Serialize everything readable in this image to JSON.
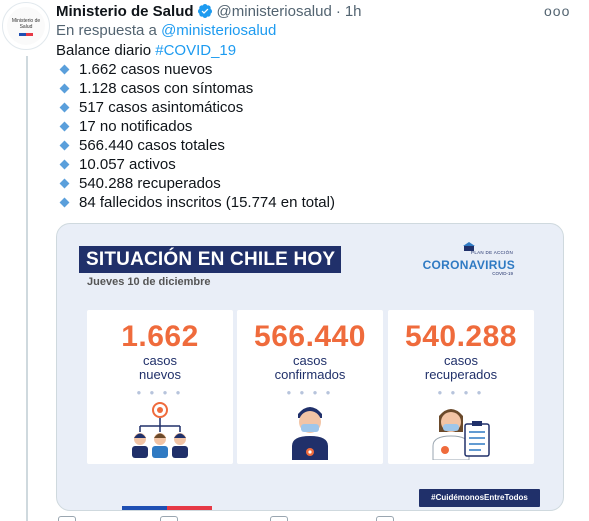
{
  "tweet": {
    "author_name": "Ministerio de Salud",
    "handle": "@ministeriosalud",
    "separator": "·",
    "time": "1h",
    "more_label": "ooo",
    "reply_prefix": "En respuesta a",
    "reply_to": "@ministeriosalud",
    "intro": "Balance diario",
    "hashtag": "#COVID_19",
    "stats": [
      "1.662 casos nuevos",
      "1.128 casos con síntomas",
      "517 casos asintomáticos",
      "17 no notificados",
      "566.440 casos totales",
      "10.057 activos",
      "540.288 recuperados",
      "84 fallecidos inscritos (15.774 en total)"
    ]
  },
  "avatar": {
    "text": "Ministerio de Salud",
    "colors": {
      "blue": "#1f4fb3",
      "red": "#e63946"
    }
  },
  "infographic": {
    "title": "SITUACIÓN EN CHILE HOY",
    "date": "Jueves 10 de diciembre",
    "plan_small": "PLAN DE ACCIÓN",
    "plan_big": "CORONAVIRUS",
    "plan_covid": "COVID-19",
    "cards": [
      {
        "number": "1.662",
        "label_line1": "casos",
        "label_line2": "nuevos",
        "dots": "● ● ● ●"
      },
      {
        "number": "566.440",
        "label_line1": "casos",
        "label_line2": "confirmados",
        "dots": "● ● ● ●"
      },
      {
        "number": "540.288",
        "label_line1": "casos",
        "label_line2": "recuperados",
        "dots": "● ● ● ●"
      }
    ],
    "banner": "#CuidémonosEntreTodos",
    "colors": {
      "navy": "#20306a",
      "orange": "#ef6b3c",
      "blue": "#2f7ac3",
      "background": "#e9eef7"
    }
  },
  "icons": [
    "verified-badge-icon",
    "diamond-icon",
    "more-icon"
  ]
}
